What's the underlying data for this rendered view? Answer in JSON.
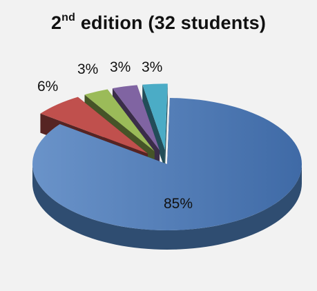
{
  "title": {
    "pre": "2",
    "sup": "nd",
    "post": " edition  (32 students)"
  },
  "chart_data": {
    "type": "pie",
    "title": "2nd edition  (32 students)",
    "labels": [
      "85%",
      "6%",
      "3%",
      "3%",
      "3%"
    ],
    "values": [
      85,
      6,
      3,
      3,
      3
    ],
    "colors": [
      "#4f81bd",
      "#c0504d",
      "#9bbb59",
      "#8064a2",
      "#4bacc6"
    ]
  }
}
